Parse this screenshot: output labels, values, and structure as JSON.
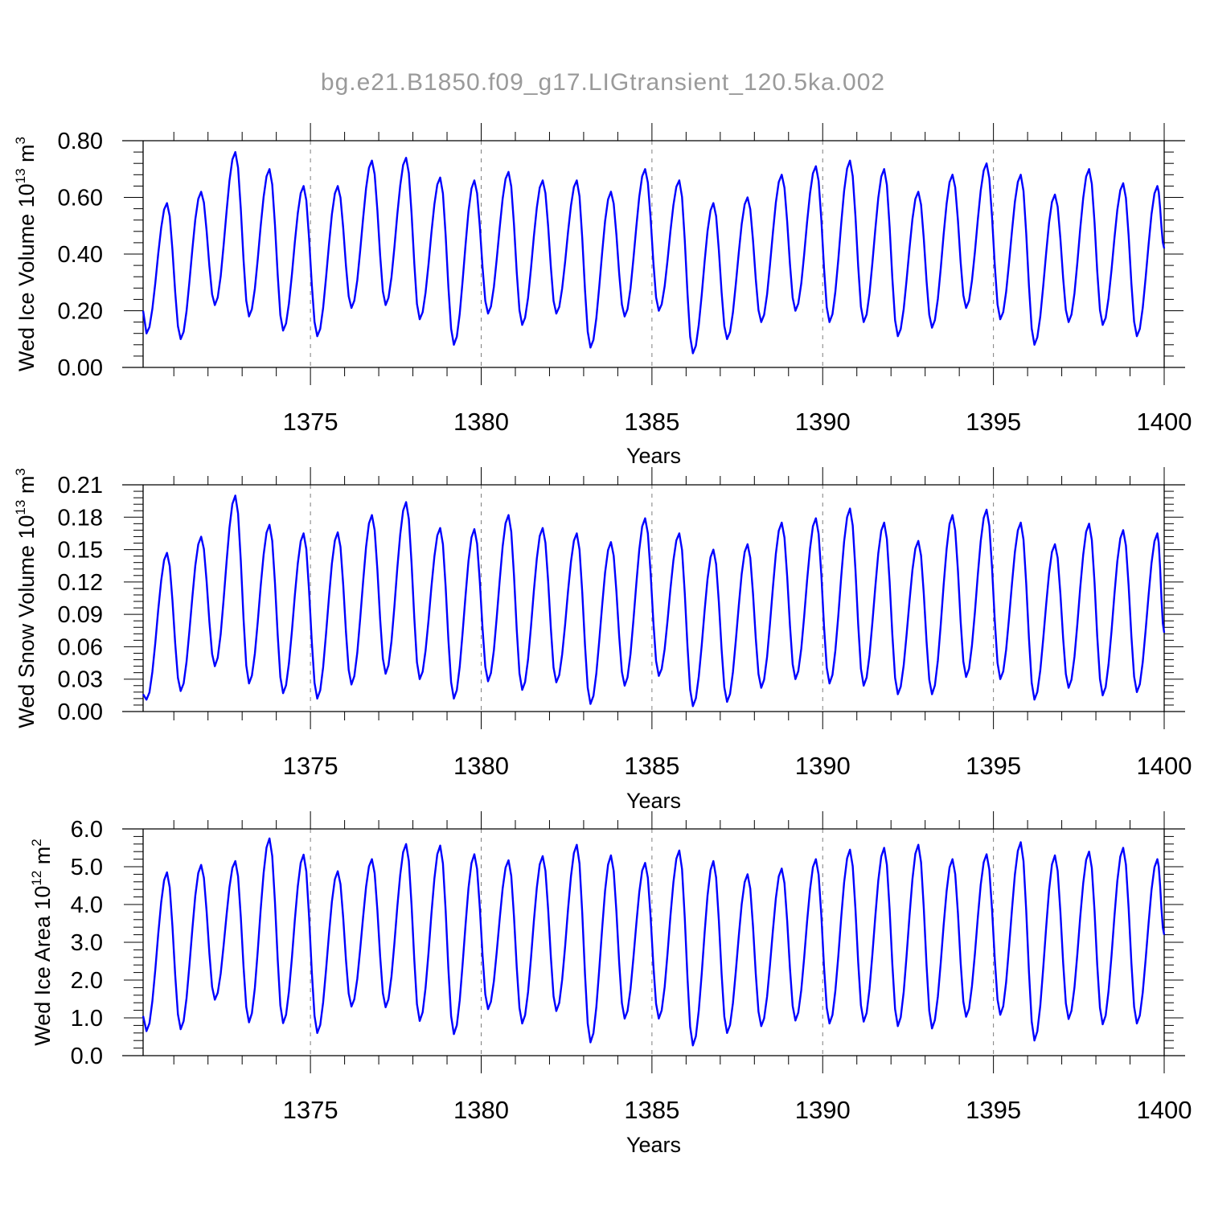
{
  "title": "bg.e21.B1850.f09_g17.LIGtransient_120.5ka.002",
  "colors": {
    "series": "#0000ff",
    "axis": "#000000",
    "grid": "#7f7f7f",
    "title": "#9a9a9a"
  },
  "chart_data": [
    {
      "type": "line",
      "ylabel": {
        "text": "Wed Ice Volume 10",
        "sup1": "13",
        "mid": " m",
        "sup2": "3"
      },
      "xlabel": "Years",
      "xlim": [
        1370.1,
        1400
      ],
      "ylim": [
        0.0,
        0.8
      ],
      "yticks": [
        "0.00",
        "0.20",
        "0.40",
        "0.60",
        "0.80"
      ],
      "xticks": [
        "1375",
        "1380",
        "1385",
        "1390",
        "1395",
        "1400"
      ],
      "grid": "dashed vertical at 1375, 1380, 1385, 1390, 1395",
      "series_color": "#0000ff",
      "peaks": [
        0.58,
        0.62,
        0.76,
        0.7,
        0.64,
        0.64,
        0.73,
        0.74,
        0.67,
        0.66,
        0.69,
        0.66,
        0.66,
        0.62,
        0.7,
        0.66,
        0.58,
        0.6,
        0.68,
        0.71,
        0.73,
        0.7,
        0.62,
        0.68,
        0.72,
        0.68,
        0.61,
        0.7,
        0.65,
        0.64
      ],
      "troughs": [
        0.12,
        0.1,
        0.22,
        0.18,
        0.13,
        0.11,
        0.21,
        0.22,
        0.17,
        0.08,
        0.19,
        0.15,
        0.19,
        0.07,
        0.18,
        0.2,
        0.05,
        0.1,
        0.16,
        0.2,
        0.16,
        0.16,
        0.11,
        0.14,
        0.21,
        0.17,
        0.08,
        0.16,
        0.15,
        0.11
      ],
      "start_value": 0.2,
      "end_value": 0.42
    },
    {
      "type": "line",
      "ylabel": {
        "text": "Wed Snow Volume 10",
        "sup1": "13",
        "mid": " m",
        "sup2": "3"
      },
      "xlabel": "Years",
      "xlim": [
        1370.1,
        1400
      ],
      "ylim": [
        0.0,
        0.21
      ],
      "yticks": [
        "0.00",
        "0.03",
        "0.06",
        "0.09",
        "0.12",
        "0.15",
        "0.18",
        "0.21"
      ],
      "xticks": [
        "1375",
        "1380",
        "1385",
        "1390",
        "1395",
        "1400"
      ],
      "grid": "dashed vertical at 1375, 1380, 1385, 1390, 1395",
      "series_color": "#0000ff",
      "peaks": [
        0.147,
        0.162,
        0.2,
        0.173,
        0.165,
        0.166,
        0.182,
        0.194,
        0.17,
        0.169,
        0.182,
        0.17,
        0.165,
        0.157,
        0.179,
        0.165,
        0.15,
        0.155,
        0.175,
        0.179,
        0.188,
        0.175,
        0.158,
        0.182,
        0.187,
        0.175,
        0.155,
        0.174,
        0.168,
        0.165
      ],
      "troughs": [
        0.011,
        0.019,
        0.042,
        0.026,
        0.017,
        0.012,
        0.025,
        0.035,
        0.03,
        0.012,
        0.028,
        0.02,
        0.027,
        0.007,
        0.024,
        0.033,
        0.005,
        0.009,
        0.022,
        0.03,
        0.026,
        0.024,
        0.016,
        0.016,
        0.032,
        0.03,
        0.011,
        0.022,
        0.015,
        0.018
      ],
      "start_value": 0.016,
      "end_value": 0.073
    },
    {
      "type": "line",
      "ylabel": {
        "text": "Wed Ice Area 10",
        "sup1": "12",
        "mid": " m",
        "sup2": "2"
      },
      "xlabel": "Years",
      "xlim": [
        1370.1,
        1400
      ],
      "ylim": [
        0.0,
        6.0
      ],
      "yticks": [
        "0.0",
        "1.0",
        "2.0",
        "3.0",
        "4.0",
        "5.0",
        "6.0"
      ],
      "xticks": [
        "1375",
        "1380",
        "1385",
        "1390",
        "1395",
        "1400"
      ],
      "grid": "dashed vertical at 1375, 1380, 1385, 1390, 1395",
      "series_color": "#0000ff",
      "peaks": [
        4.85,
        5.05,
        5.15,
        5.75,
        5.32,
        4.88,
        5.2,
        5.6,
        5.56,
        5.33,
        5.17,
        5.28,
        5.58,
        5.3,
        5.1,
        5.43,
        5.15,
        4.8,
        4.95,
        5.2,
        5.45,
        5.5,
        5.58,
        5.2,
        5.33,
        5.65,
        5.3,
        5.4,
        5.5,
        5.2
      ],
      "troughs": [
        0.65,
        0.7,
        1.48,
        0.88,
        0.86,
        0.6,
        1.3,
        1.28,
        0.92,
        0.57,
        1.23,
        0.85,
        1.18,
        0.35,
        0.98,
        0.98,
        0.27,
        0.6,
        0.78,
        0.93,
        0.85,
        0.9,
        0.78,
        0.72,
        1.03,
        1.08,
        0.4,
        0.97,
        0.83,
        0.85
      ],
      "start_value": 1.05,
      "end_value": 3.2
    }
  ]
}
